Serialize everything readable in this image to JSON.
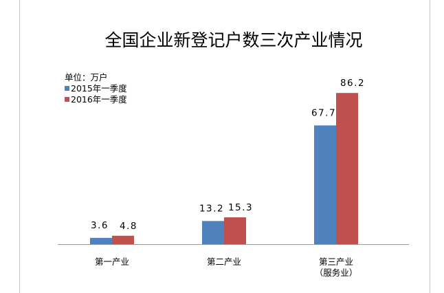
{
  "chart_data": {
    "type": "bar",
    "title": "全国企业新登记户数三次产业情况",
    "unit_label": "单位：万户",
    "categories": [
      [
        "第一产业"
      ],
      [
        "第二产业"
      ],
      [
        "第三产业",
        "（服务业）"
      ]
    ],
    "series": [
      {
        "name": "2015年一季度",
        "color": "#4F81BD",
        "values": [
          3.6,
          13.2,
          67.7
        ]
      },
      {
        "name": "2016年一季度",
        "color": "#C0504D",
        "values": [
          4.8,
          15.3,
          86.2
        ]
      }
    ],
    "ylim": [
      0,
      90
    ],
    "grid": false,
    "legend": "top-left"
  }
}
